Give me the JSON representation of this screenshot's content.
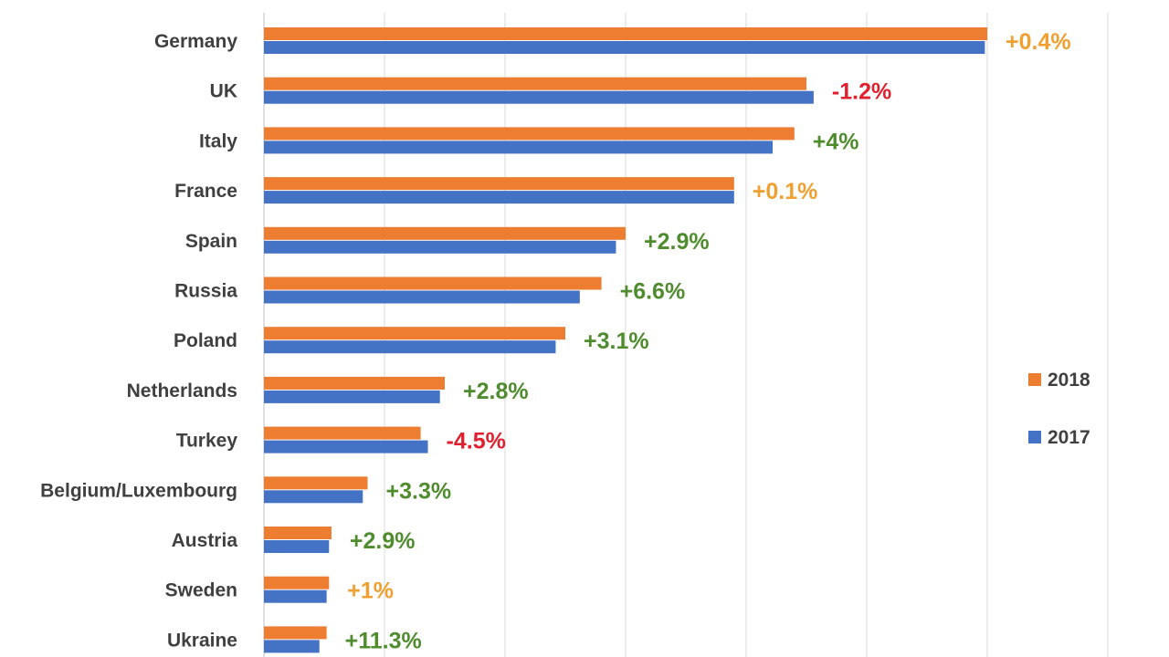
{
  "chart_data": {
    "type": "bar",
    "orientation": "horizontal",
    "title": "",
    "xlabel": "",
    "ylabel": "",
    "grid": true,
    "legend_position": "right",
    "categories": [
      "Germany",
      "UK",
      "Italy",
      "France",
      "Spain",
      "Russia",
      "Poland",
      "Netherlands",
      "Turkey",
      "Belgium/Luxembourg",
      "Austria",
      "Sweden",
      "Ukraine"
    ],
    "series": [
      {
        "name": "2018",
        "color": "#ED7D31",
        "values": [
          3.0,
          2.25,
          2.2,
          1.95,
          1.5,
          1.4,
          1.25,
          0.75,
          0.65,
          0.43,
          0.28,
          0.27,
          0.26
        ]
      },
      {
        "name": "2017",
        "color": "#4472C4",
        "values": [
          2.99,
          2.28,
          2.11,
          1.95,
          1.46,
          1.31,
          1.21,
          0.73,
          0.68,
          0.41,
          0.27,
          0.26,
          0.23
        ]
      }
    ],
    "change_labels": [
      {
        "text": "+0.4%",
        "color": "#F0A030"
      },
      {
        "text": "-1.2%",
        "color": "#E0202E"
      },
      {
        "text": "+4%",
        "color": "#4E8C2E"
      },
      {
        "text": "+0.1%",
        "color": "#F0A030"
      },
      {
        "text": "+2.9%",
        "color": "#4E8C2E"
      },
      {
        "text": "+6.6%",
        "color": "#4E8C2E"
      },
      {
        "text": "+3.1%",
        "color": "#4E8C2E"
      },
      {
        "text": "+2.8%",
        "color": "#4E8C2E"
      },
      {
        "text": "-4.5%",
        "color": "#E0202E"
      },
      {
        "text": "+3.3%",
        "color": "#4E8C2E"
      },
      {
        "text": "+2.9%",
        "color": "#4E8C2E"
      },
      {
        "text": "+1%",
        "color": "#F0A030"
      },
      {
        "text": "+11.3%",
        "color": "#4E8C2E"
      }
    ],
    "xlim": [
      0,
      3.5
    ],
    "grid_step": 0.5
  }
}
